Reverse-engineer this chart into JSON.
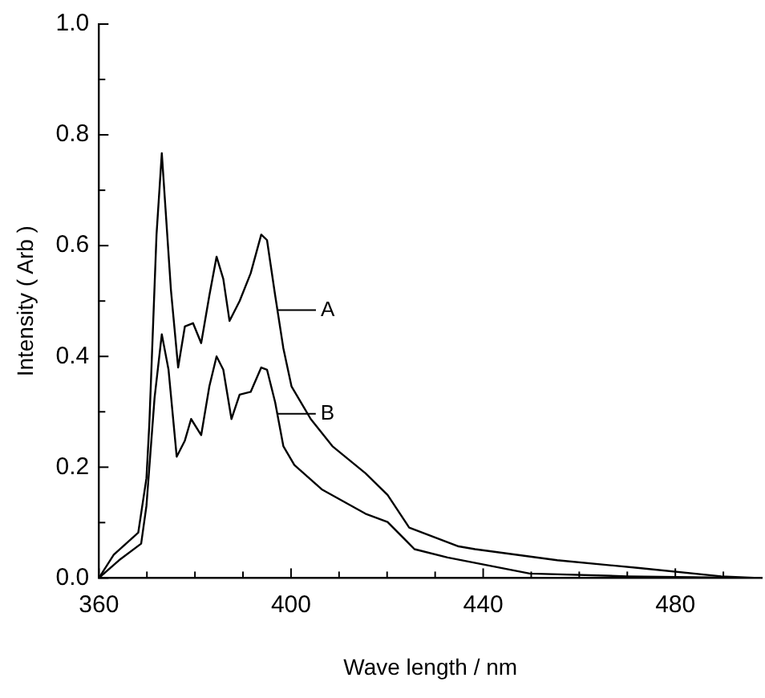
{
  "chart_data": {
    "type": "line",
    "xlabel": "Wave length / nm",
    "ylabel": "Intensity ( Arb )",
    "xlim": [
      360,
      498
    ],
    "ylim": [
      0,
      1.0
    ],
    "xticks": [
      360,
      {
        "value": 370,
        "label": null
      },
      {
        "value": 380,
        "label": null
      },
      {
        "value": 390,
        "label": null
      },
      400,
      {
        "value": 410,
        "label": null
      },
      {
        "value": 420,
        "label": null
      },
      {
        "value": 430,
        "label": null
      },
      440,
      {
        "value": 450,
        "label": null
      },
      {
        "value": 460,
        "label": null
      },
      {
        "value": 470,
        "label": null
      },
      480,
      {
        "value": 490,
        "label": null
      }
    ],
    "yticks": [
      {
        "value": 0,
        "label": "0.0"
      },
      {
        "value": 0.1,
        "label": null
      },
      {
        "value": 0.2,
        "label": "0.2"
      },
      {
        "value": 0.3,
        "label": null
      },
      {
        "value": 0.4,
        "label": "0.4"
      },
      {
        "value": 0.5,
        "label": null
      },
      {
        "value": 0.6,
        "label": "0.6"
      },
      {
        "value": 0.7,
        "label": null
      },
      {
        "value": 0.8,
        "label": "0.8"
      },
      {
        "value": 0.9,
        "label": null
      },
      {
        "value": 1.0,
        "label": "1.0"
      }
    ],
    "grid": false,
    "legend": "bottom left",
    "marker": "none",
    "line_style": "solid",
    "series": [
      {
        "name": "A",
        "color": "#000000",
        "x": [
          360,
          363.1,
          368.2,
          369.9,
          370.5,
          372,
          373.1,
          375,
          376.5,
          377.9,
          379.6,
          381.3,
          383,
          384.5,
          385.9,
          387.2,
          389.3,
          391.6,
          393.8,
          395,
          396.7,
          398.4,
          400.1,
          404.1,
          408.6,
          415.5,
          420.1,
          424.6,
          434.9,
          438.3,
          455.4,
          472.5,
          489.6,
          497.4
        ],
        "values": [
          0,
          0.042,
          0.082,
          0.18,
          0.277,
          0.62,
          0.767,
          0.52,
          0.38,
          0.454,
          0.46,
          0.424,
          0.51,
          0.58,
          0.54,
          0.464,
          0.5,
          0.55,
          0.62,
          0.61,
          0.51,
          0.415,
          0.346,
          0.287,
          0.238,
          0.189,
          0.15,
          0.091,
          0.057,
          0.052,
          0.032,
          0.018,
          0.003,
          0
        ]
      },
      {
        "name": "B",
        "color": "#000000",
        "x": [
          360,
          364.2,
          368.8,
          369.9,
          371.6,
          373.1,
          374.5,
          376.2,
          377.9,
          379.2,
          381.3,
          383,
          384.5,
          385.9,
          387.6,
          389.3,
          391.6,
          393.8,
          395,
          396.7,
          398.4,
          400.7,
          406.4,
          415.5,
          420.1,
          425.7,
          432.6,
          449.7,
          470,
          497.4
        ],
        "values": [
          0,
          0.032,
          0.062,
          0.13,
          0.326,
          0.44,
          0.376,
          0.219,
          0.248,
          0.287,
          0.258,
          0.346,
          0.4,
          0.376,
          0.287,
          0.331,
          0.336,
          0.38,
          0.376,
          0.317,
          0.238,
          0.204,
          0.16,
          0.116,
          0.101,
          0.052,
          0.037,
          0.008,
          0.003,
          0
        ]
      }
    ]
  }
}
